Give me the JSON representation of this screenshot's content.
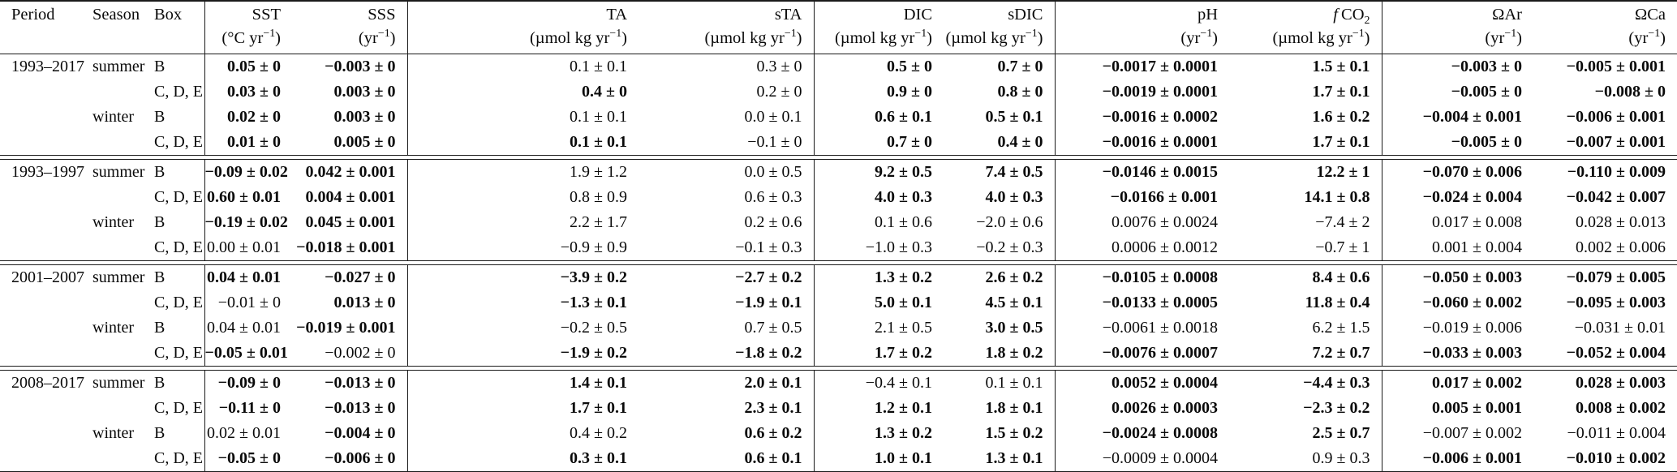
{
  "colors": {
    "background": "#ffffff",
    "text": "#0a0a0a",
    "rule": "#1a1a1a"
  },
  "table": {
    "columns": [
      {
        "key": "period",
        "label_html": "Period",
        "unit_html": ""
      },
      {
        "key": "season",
        "label_html": "Season",
        "unit_html": ""
      },
      {
        "key": "box",
        "label_html": "Box",
        "unit_html": ""
      },
      {
        "key": "sst",
        "label_html": "SST",
        "unit_html": "(°C yr<sup>−1</sup>)"
      },
      {
        "key": "sss",
        "label_html": "SSS",
        "unit_html": "(yr<sup>−1</sup>)"
      },
      {
        "key": "ta",
        "label_html": "TA",
        "unit_html": "(µmol kg yr<sup>−1</sup>)"
      },
      {
        "key": "sta",
        "label_html": "sTA",
        "unit_html": "(µmol kg yr<sup>−1</sup>)"
      },
      {
        "key": "dic",
        "label_html": "DIC",
        "unit_html": "(µmol kg yr<sup>−1</sup>)"
      },
      {
        "key": "sdic",
        "label_html": "sDIC",
        "unit_html": "(µmol kg yr<sup>−1</sup>)"
      },
      {
        "key": "ph",
        "label_html": "pH",
        "unit_html": "(yr<sup>−1</sup>)"
      },
      {
        "key": "fco2",
        "label_html": "<i>f</i>&#8201;CO<sub>2</sub>",
        "unit_html": "(µmol kg yr<sup>−1</sup>)"
      },
      {
        "key": "oar",
        "label_html": "ΩAr",
        "unit_html": "(yr<sup>−1</sup>)"
      },
      {
        "key": "oca",
        "label_html": "ΩCa",
        "unit_html": "(yr<sup>−1</sup>)"
      }
    ],
    "groups": [
      {
        "period": "1993–2017",
        "rows": [
          {
            "period": "1993–2017",
            "season": "summer",
            "box": "B",
            "values": [
              "0.05 ± 0",
              "−0.003 ± 0",
              "0.1 ± 0.1",
              "0.3 ± 0",
              "0.5 ± 0",
              "0.7 ± 0",
              "−0.0017 ± 0.0001",
              "1.5 ± 0.1",
              "−0.003 ± 0",
              "−0.005 ± 0.001"
            ],
            "bold": [
              true,
              true,
              false,
              false,
              true,
              true,
              true,
              true,
              true,
              true
            ]
          },
          {
            "period": "",
            "season": "",
            "box": "C, D, E",
            "values": [
              "0.03 ± 0",
              "0.003 ± 0",
              "0.4 ± 0",
              "0.2 ± 0",
              "0.9 ± 0",
              "0.8 ± 0",
              "−0.0019 ± 0.0001",
              "1.7 ± 0.1",
              "−0.005 ± 0",
              "−0.008 ± 0"
            ],
            "bold": [
              true,
              true,
              true,
              false,
              true,
              true,
              true,
              true,
              true,
              true
            ]
          },
          {
            "period": "",
            "season": "winter",
            "box": "B",
            "values": [
              "0.02 ± 0",
              "0.003 ± 0",
              "0.1 ± 0.1",
              "0.0 ± 0.1",
              "0.6 ± 0.1",
              "0.5 ± 0.1",
              "−0.0016 ± 0.0002",
              "1.6 ± 0.2",
              "−0.004 ± 0.001",
              "−0.006 ± 0.001"
            ],
            "bold": [
              true,
              true,
              false,
              false,
              true,
              true,
              true,
              true,
              true,
              true
            ]
          },
          {
            "period": "",
            "season": "",
            "box": "C, D, E",
            "values": [
              "0.01 ± 0",
              "0.005 ± 0",
              "0.1 ± 0.1",
              "−0.1 ± 0",
              "0.7 ± 0",
              "0.4 ± 0",
              "−0.0016 ± 0.0001",
              "1.7 ± 0.1",
              "−0.005 ± 0",
              "−0.007 ± 0.001"
            ],
            "bold": [
              true,
              true,
              true,
              false,
              true,
              true,
              true,
              true,
              true,
              true
            ]
          }
        ]
      },
      {
        "period": "1993–1997",
        "rows": [
          {
            "period": "1993–1997",
            "season": "summer",
            "box": "B",
            "values": [
              "−0.09 ± 0.02",
              "0.042 ± 0.001",
              "1.9 ± 1.2",
              "0.0 ± 0.5",
              "9.2 ± 0.5",
              "7.4 ± 0.5",
              "−0.0146 ± 0.0015",
              "12.2 ± 1",
              "−0.070 ± 0.006",
              "−0.110 ± 0.009"
            ],
            "bold": [
              true,
              true,
              false,
              false,
              true,
              true,
              true,
              true,
              true,
              true
            ]
          },
          {
            "period": "",
            "season": "",
            "box": "C, D, E",
            "values": [
              "0.60 ± 0.01",
              "0.004 ± 0.001",
              "0.8 ± 0.9",
              "0.6 ± 0.3",
              "4.0 ± 0.3",
              "4.0 ± 0.3",
              "−0.0166 ± 0.001",
              "14.1 ± 0.8",
              "−0.024 ± 0.004",
              "−0.042 ± 0.007"
            ],
            "bold": [
              true,
              true,
              false,
              false,
              true,
              true,
              true,
              true,
              true,
              true
            ]
          },
          {
            "period": "",
            "season": "winter",
            "box": "B",
            "values": [
              "−0.19 ± 0.02",
              "0.045 ± 0.001",
              "2.2 ± 1.7",
              "0.2 ± 0.6",
              "0.1 ± 0.6",
              "−2.0 ± 0.6",
              "0.0076 ± 0.0024",
              "−7.4 ± 2",
              "0.017 ± 0.008",
              "0.028 ± 0.013"
            ],
            "bold": [
              true,
              true,
              false,
              false,
              false,
              false,
              false,
              false,
              false,
              false
            ]
          },
          {
            "period": "",
            "season": "",
            "box": "C, D, E",
            "values": [
              "0.00 ± 0.01",
              "−0.018 ± 0.001",
              "−0.9 ± 0.9",
              "−0.1 ± 0.3",
              "−1.0 ± 0.3",
              "−0.2 ± 0.3",
              "0.0006 ± 0.0012",
              "−0.7 ± 1",
              "0.001 ± 0.004",
              "0.002 ± 0.006"
            ],
            "bold": [
              false,
              true,
              false,
              false,
              false,
              false,
              false,
              false,
              false,
              false
            ]
          }
        ]
      },
      {
        "period": "2001–2007",
        "rows": [
          {
            "period": "2001–2007",
            "season": "summer",
            "box": "B",
            "values": [
              "0.04 ± 0.01",
              "−0.027 ± 0",
              "−3.9 ± 0.2",
              "−2.7 ± 0.2",
              "1.3 ± 0.2",
              "2.6 ± 0.2",
              "−0.0105 ± 0.0008",
              "8.4 ± 0.6",
              "−0.050 ± 0.003",
              "−0.079 ± 0.005"
            ],
            "bold": [
              true,
              true,
              true,
              true,
              true,
              true,
              true,
              true,
              true,
              true
            ]
          },
          {
            "period": "",
            "season": "",
            "box": "C, D, E",
            "values": [
              "−0.01 ± 0",
              "0.013 ± 0",
              "−1.3 ± 0.1",
              "−1.9 ± 0.1",
              "5.0 ± 0.1",
              "4.5 ± 0.1",
              "−0.0133 ± 0.0005",
              "11.8 ± 0.4",
              "−0.060 ± 0.002",
              "−0.095 ± 0.003"
            ],
            "bold": [
              false,
              true,
              true,
              true,
              true,
              true,
              true,
              true,
              true,
              true
            ]
          },
          {
            "period": "",
            "season": "winter",
            "box": "B",
            "values": [
              "0.04 ± 0.01",
              "−0.019 ± 0.001",
              "−0.2 ± 0.5",
              "0.7 ± 0.5",
              "2.1 ± 0.5",
              "3.0 ± 0.5",
              "−0.0061 ± 0.0018",
              "6.2 ± 1.5",
              "−0.019 ± 0.006",
              "−0.031 ± 0.01"
            ],
            "bold": [
              false,
              true,
              false,
              false,
              false,
              true,
              false,
              false,
              false,
              false
            ]
          },
          {
            "period": "",
            "season": "",
            "box": "C, D, E",
            "values": [
              "−0.05 ± 0.01",
              "−0.002 ± 0",
              "−1.9 ± 0.2",
              "−1.8 ± 0.2",
              "1.7 ± 0.2",
              "1.8 ± 0.2",
              "−0.0076 ± 0.0007",
              "7.2 ± 0.7",
              "−0.033 ± 0.003",
              "−0.052 ± 0.004"
            ],
            "bold": [
              true,
              false,
              true,
              true,
              true,
              true,
              true,
              true,
              true,
              true
            ]
          }
        ]
      },
      {
        "period": "2008–2017",
        "rows": [
          {
            "period": "2008–2017",
            "season": "summer",
            "box": "B",
            "values": [
              "−0.09 ± 0",
              "−0.013 ± 0",
              "1.4 ± 0.1",
              "2.0 ± 0.1",
              "−0.4 ± 0.1",
              "0.1 ± 0.1",
              "0.0052 ± 0.0004",
              "−4.4 ± 0.3",
              "0.017 ± 0.002",
              "0.028 ± 0.003"
            ],
            "bold": [
              true,
              true,
              true,
              true,
              false,
              false,
              true,
              true,
              true,
              true
            ]
          },
          {
            "period": "",
            "season": "",
            "box": "C, D, E",
            "values": [
              "−0.11 ± 0",
              "−0.013 ± 0",
              "1.7 ± 0.1",
              "2.3 ± 0.1",
              "1.2 ± 0.1",
              "1.8 ± 0.1",
              "0.0026 ± 0.0003",
              "−2.3 ± 0.2",
              "0.005 ± 0.001",
              "0.008 ± 0.002"
            ],
            "bold": [
              true,
              true,
              true,
              true,
              true,
              true,
              true,
              true,
              true,
              true
            ]
          },
          {
            "period": "",
            "season": "winter",
            "box": "B",
            "values": [
              "0.02 ± 0.01",
              "−0.004 ± 0",
              "0.4 ± 0.2",
              "0.6 ± 0.2",
              "1.3 ± 0.2",
              "1.5 ± 0.2",
              "−0.0024 ± 0.0008",
              "2.5 ± 0.7",
              "−0.007 ± 0.002",
              "−0.011 ± 0.004"
            ],
            "bold": [
              false,
              true,
              false,
              true,
              true,
              true,
              true,
              true,
              false,
              false
            ]
          },
          {
            "period": "",
            "season": "",
            "box": "C, D, E",
            "values": [
              "−0.05 ± 0",
              "−0.006 ± 0",
              "0.3 ± 0.1",
              "0.6 ± 0.1",
              "1.0 ± 0.1",
              "1.3 ± 0.1",
              "−0.0009 ± 0.0004",
              "0.9 ± 0.3",
              "−0.006 ± 0.001",
              "−0.010 ± 0.002"
            ],
            "bold": [
              true,
              true,
              true,
              true,
              true,
              true,
              false,
              false,
              true,
              true
            ]
          }
        ]
      }
    ]
  }
}
